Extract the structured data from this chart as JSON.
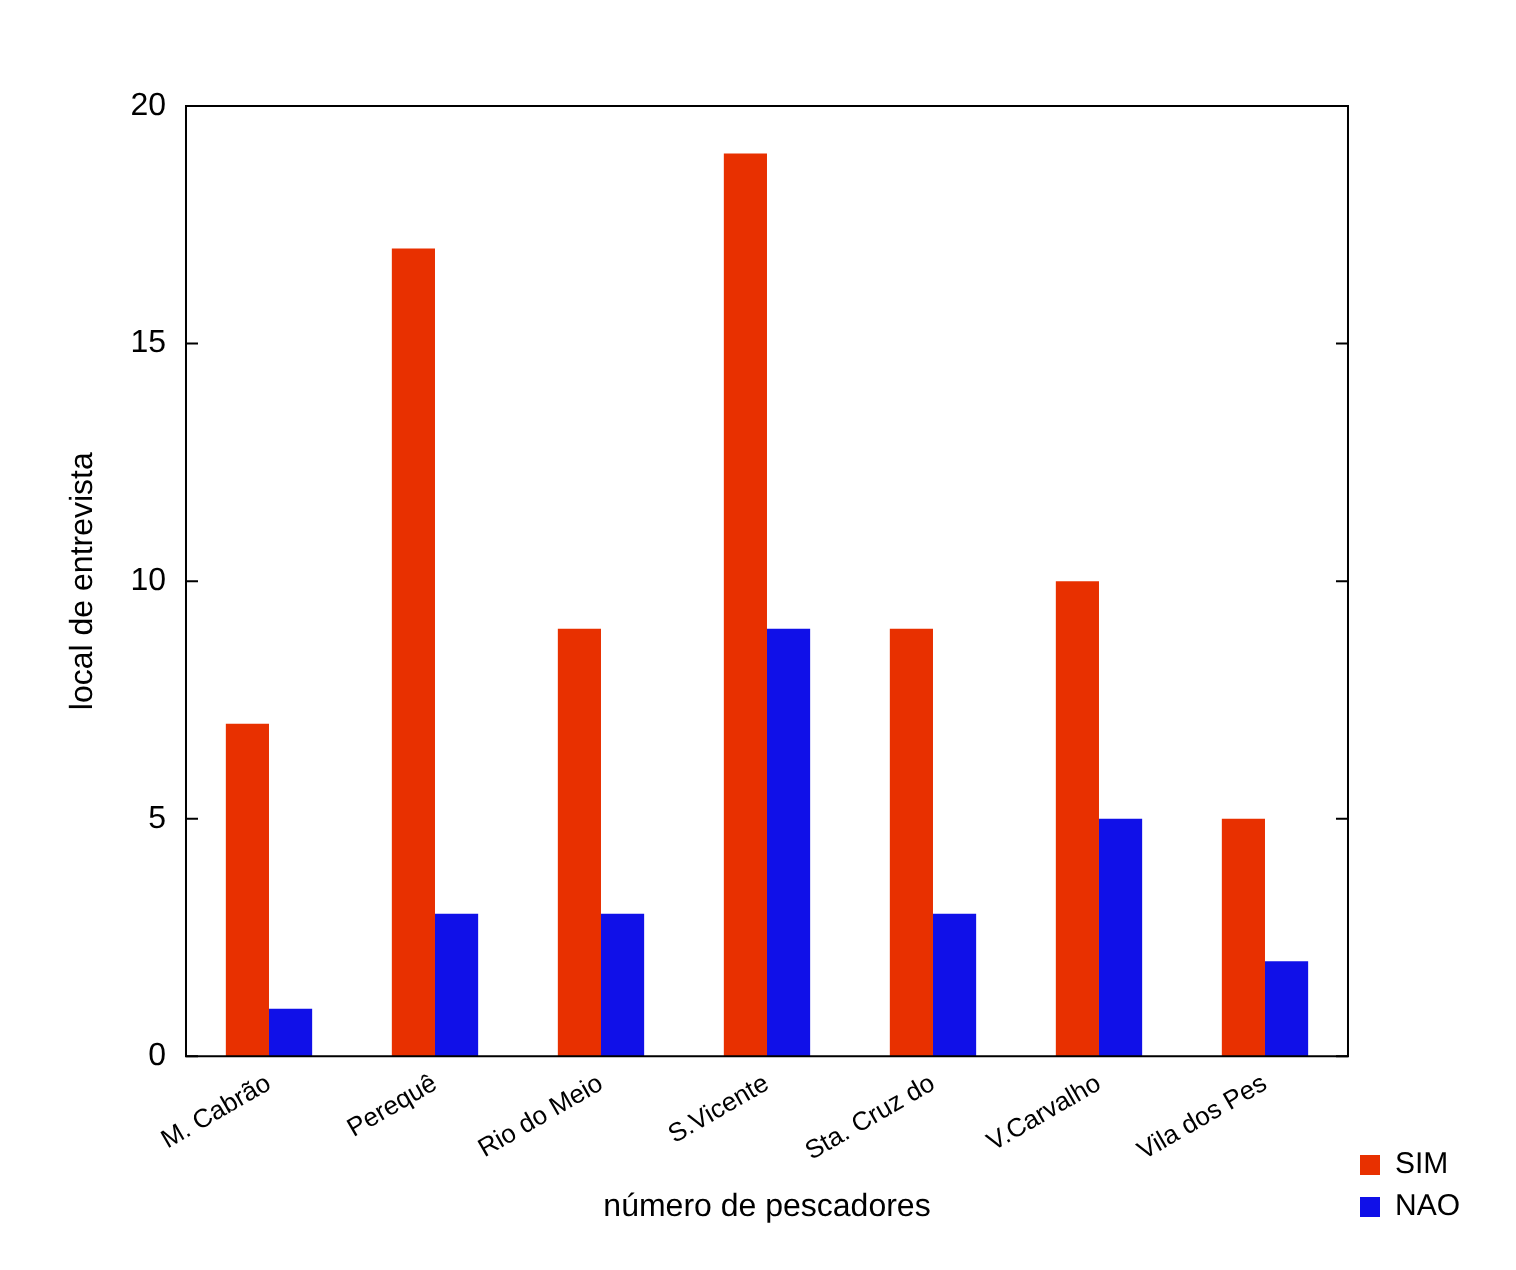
{
  "chart_data": {
    "type": "bar",
    "xlabel": "número de pescadores",
    "ylabel": "local de entrevista",
    "categories": [
      "M. Cabrão",
      "Perequê",
      "Rio do Meio",
      "S.Vicente",
      "Sta. Cruz do",
      "V.Carvalho",
      "Vila dos Pes"
    ],
    "series": [
      {
        "name": "SIM",
        "color": "#e83000",
        "values": [
          7,
          17,
          9,
          19,
          9,
          10,
          5
        ]
      },
      {
        "name": "NAO",
        "color": "#1010e8",
        "values": [
          1,
          3,
          3,
          9,
          3,
          5,
          2
        ]
      }
    ],
    "ylim": [
      0,
      20
    ],
    "yticks": [
      0,
      5,
      10,
      15,
      20
    ],
    "grid": false,
    "legend": "right"
  }
}
